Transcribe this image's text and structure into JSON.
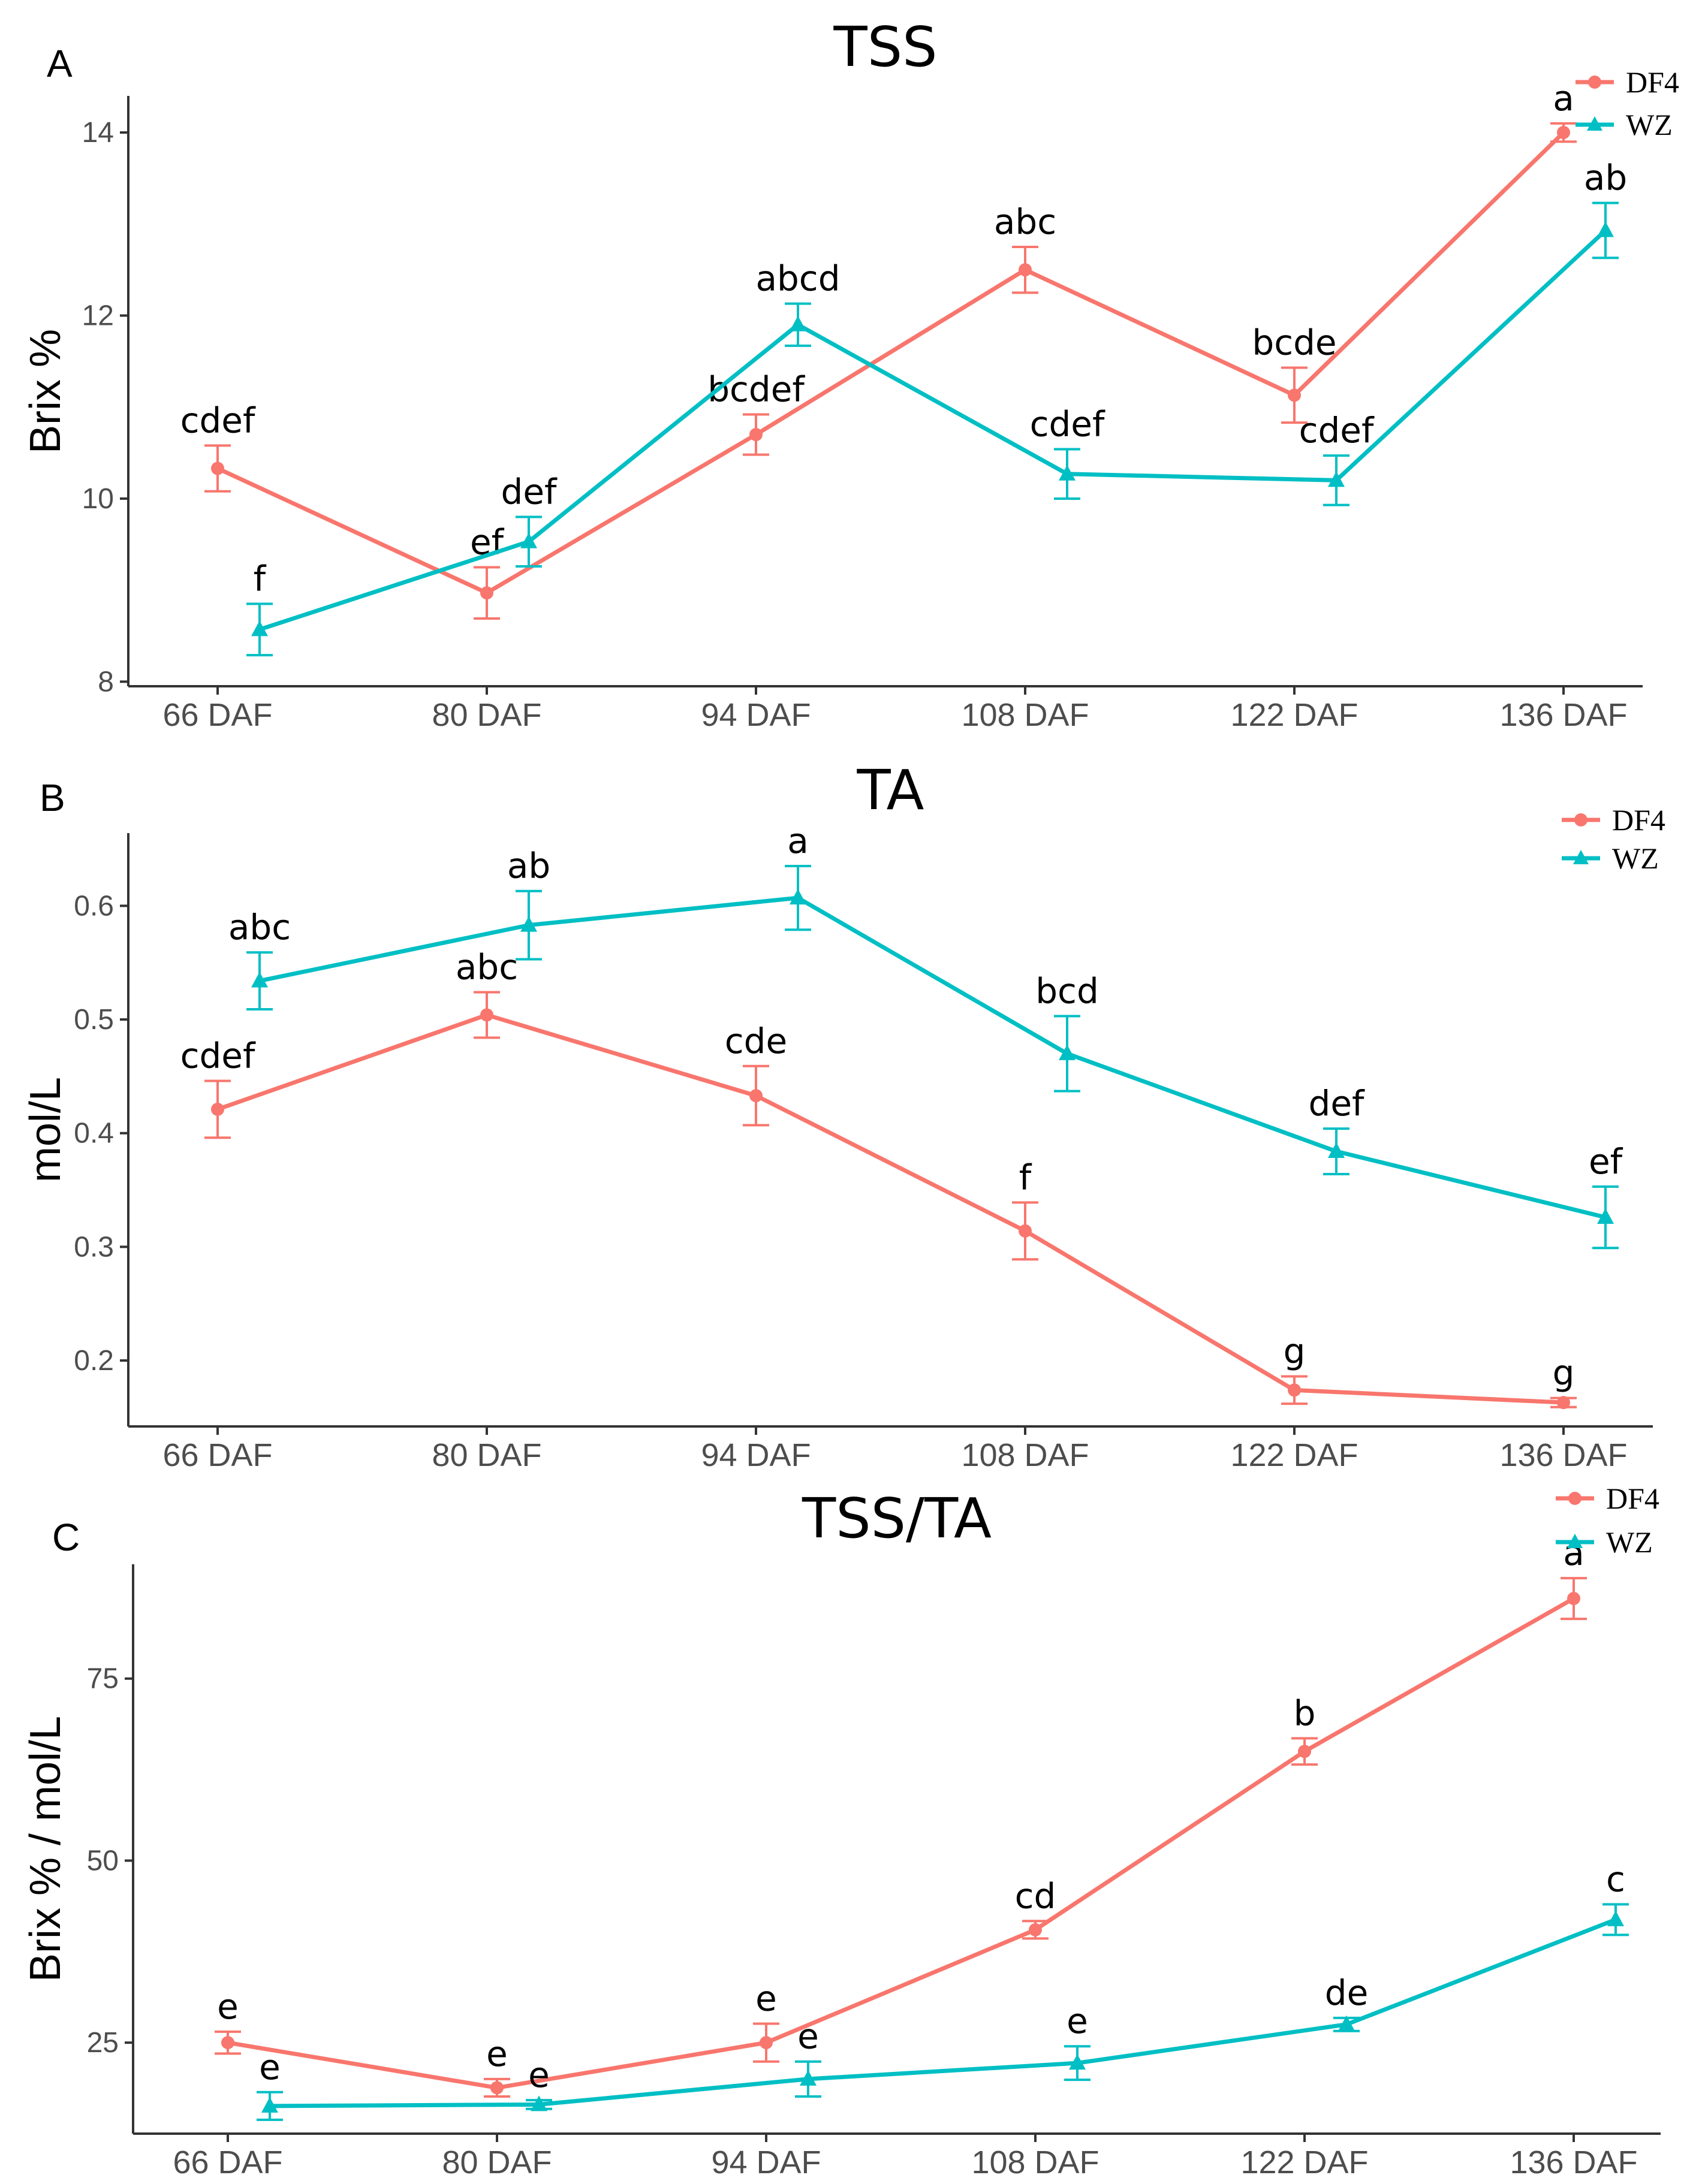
{
  "colors": {
    "DF4": "#f8766d",
    "WZ": "#00bfc4",
    "axis": "#333333",
    "tick_text": "#4d4d4d"
  },
  "legend_marker_icons": {
    "DF4": "circle-marker-icon",
    "WZ": "triangle-marker-icon"
  },
  "chart_data": [
    {
      "type": "line",
      "panel_label": "A",
      "title": "TSS",
      "xlabel": "",
      "ylabel": "Brix %",
      "categories": [
        "66 DAF",
        "80 DAF",
        "94 DAF",
        "108 DAF",
        "122 DAF",
        "136 DAF"
      ],
      "ylim": [
        7.95,
        14.4
      ],
      "yticks": [
        8,
        10,
        12,
        14
      ],
      "legend": [
        "DF4",
        "WZ"
      ],
      "legend_position": "top-right",
      "series": [
        {
          "name": "DF4",
          "marker": "circle",
          "values": [
            10.33,
            8.97,
            10.7,
            12.5,
            11.13,
            14.0
          ],
          "errors": [
            0.25,
            0.28,
            0.22,
            0.25,
            0.3,
            0.1
          ],
          "annotations": [
            "cdef",
            "ef",
            "bcdef",
            "abc",
            "bcde",
            "a"
          ]
        },
        {
          "name": "WZ",
          "marker": "triangle",
          "values": [
            8.57,
            9.53,
            11.9,
            10.27,
            10.2,
            12.93
          ],
          "errors": [
            0.28,
            0.27,
            0.23,
            0.27,
            0.27,
            0.3
          ],
          "annotations": [
            "f",
            "def",
            "abcd",
            "cdef",
            "cdef",
            "ab"
          ]
        }
      ]
    },
    {
      "type": "line",
      "panel_label": "B",
      "title": "TA",
      "xlabel": "",
      "ylabel": "mol/L",
      "categories": [
        "66 DAF",
        "80 DAF",
        "94 DAF",
        "108 DAF",
        "122 DAF",
        "136 DAF"
      ],
      "ylim": [
        0.142,
        0.664
      ],
      "yticks": [
        0.2,
        0.3,
        0.4,
        0.5,
        0.6
      ],
      "legend": [
        "DF4",
        "WZ"
      ],
      "legend_position": "top-right",
      "series": [
        {
          "name": "DF4",
          "marker": "circle",
          "values": [
            0.421,
            0.504,
            0.433,
            0.314,
            0.174,
            0.163
          ],
          "errors": [
            0.025,
            0.02,
            0.026,
            0.025,
            0.012,
            0.004
          ],
          "annotations": [
            "cdef",
            "abc",
            "cde",
            "f",
            "g",
            "g"
          ]
        },
        {
          "name": "WZ",
          "marker": "triangle",
          "values": [
            0.534,
            0.583,
            0.607,
            0.47,
            0.384,
            0.326
          ],
          "errors": [
            0.025,
            0.03,
            0.028,
            0.033,
            0.02,
            0.027
          ],
          "annotations": [
            "abc",
            "ab",
            "a",
            "bcd",
            "def",
            "ef"
          ]
        }
      ]
    },
    {
      "type": "line",
      "panel_label": "C",
      "title": "TSS/TA",
      "xlabel": "",
      "ylabel": "Brix % / mol/L",
      "categories": [
        "66 DAF",
        "80 DAF",
        "94 DAF",
        "108 DAF",
        "122 DAF",
        "136 DAF"
      ],
      "ylim": [
        12.5,
        90.7
      ],
      "yticks": [
        25,
        50,
        75
      ],
      "legend": [
        "DF4",
        "WZ"
      ],
      "legend_position": "top-right",
      "series": [
        {
          "name": "DF4",
          "marker": "circle",
          "values": [
            25.0,
            18.8,
            25.0,
            40.5,
            65.0,
            86.0
          ],
          "errors": [
            1.5,
            1.2,
            2.6,
            1.2,
            1.8,
            2.8
          ],
          "annotations": [
            "e",
            "e",
            "e",
            "cd",
            "b",
            "a"
          ]
        },
        {
          "name": "WZ",
          "marker": "triangle",
          "values": [
            16.3,
            16.5,
            20.0,
            22.2,
            27.5,
            41.9
          ],
          "errors": [
            1.9,
            0.6,
            2.4,
            2.3,
            0.9,
            2.1
          ],
          "annotations": [
            "e",
            "e",
            "e",
            "e",
            "de",
            "c"
          ]
        }
      ]
    }
  ]
}
